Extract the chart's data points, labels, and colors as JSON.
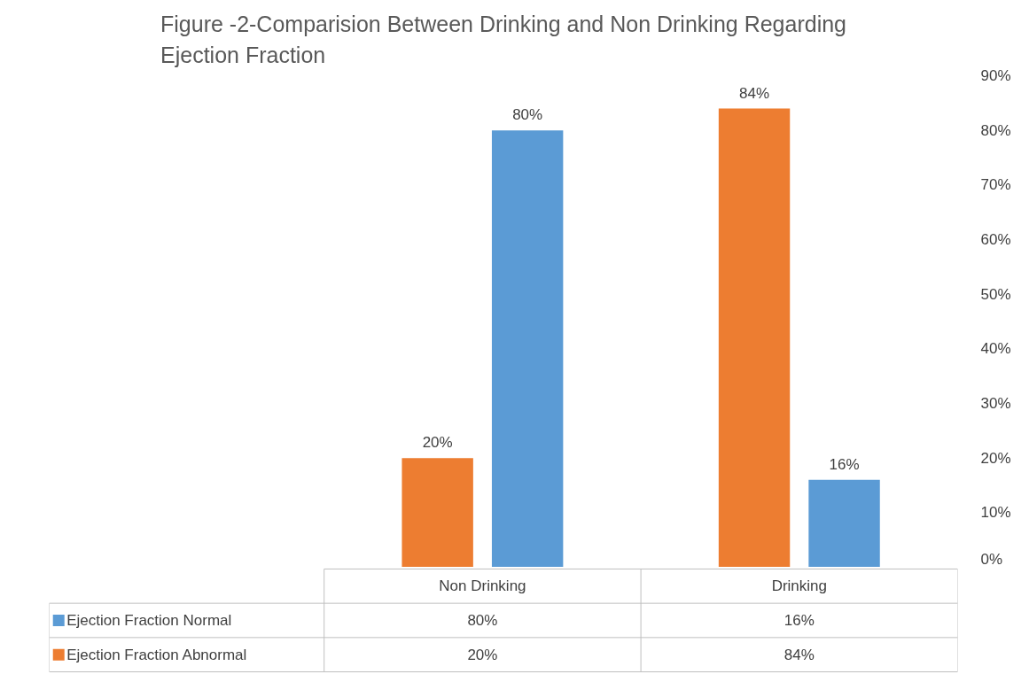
{
  "chart_data": {
    "type": "bar",
    "title": "Figure -2-Comparision Between Drinking and Non Drinking Regarding Ejection Fraction",
    "categories": [
      "Non Drinking",
      "Drinking"
    ],
    "series": [
      {
        "name": "Ejection Fraction  Abnormal",
        "color": "#ed7d31",
        "values": [
          20,
          84
        ],
        "value_labels": [
          "20%",
          "84%"
        ]
      },
      {
        "name": "Ejection Fraction  Normal",
        "color": "#5b9bd5",
        "values": [
          80,
          16
        ],
        "value_labels": [
          "80%",
          "16%"
        ]
      }
    ],
    "ylim": [
      0,
      90
    ],
    "yticks": [
      {
        "value": 0,
        "label": "0%"
      },
      {
        "value": 10,
        "label": "10%"
      },
      {
        "value": 20,
        "label": "20%"
      },
      {
        "value": 30,
        "label": "30%"
      },
      {
        "value": 40,
        "label": "40%"
      },
      {
        "value": 50,
        "label": "50%"
      },
      {
        "value": 60,
        "label": "60%"
      },
      {
        "value": 70,
        "label": "70%"
      },
      {
        "value": 80,
        "label": "80%"
      },
      {
        "value": 90,
        "label": "90%"
      }
    ],
    "grid": false,
    "legend": "bottom"
  }
}
